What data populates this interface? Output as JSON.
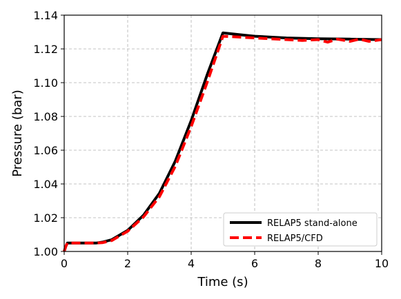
{
  "chart_data": {
    "type": "line",
    "title": "",
    "xlabel": "Time (s)",
    "ylabel": "Pressure (bar)",
    "xlim": [
      0,
      10
    ],
    "ylim": [
      1.0,
      1.14
    ],
    "xticks": [
      "0",
      "2",
      "4",
      "6",
      "8",
      "10"
    ],
    "xtick_values": [
      0,
      2,
      4,
      6,
      8,
      10
    ],
    "yticks": [
      "1.00",
      "1.02",
      "1.04",
      "1.06",
      "1.08",
      "1.10",
      "1.12",
      "1.14"
    ],
    "ytick_values": [
      1.0,
      1.02,
      1.04,
      1.06,
      1.08,
      1.1,
      1.12,
      1.14
    ],
    "grid": true,
    "legend_position": "lower-right",
    "series": [
      {
        "name": "RELAP5 stand-alone",
        "color": "#000000",
        "style": "solid",
        "x": [
          0.0,
          0.05,
          0.1,
          0.2,
          0.5,
          1.0,
          1.2,
          1.5,
          2.0,
          2.5,
          3.0,
          3.5,
          4.0,
          4.5,
          5.0,
          5.5,
          6.0,
          7.0,
          8.0,
          9.0,
          10.0
        ],
        "y": [
          1.0,
          1.003,
          1.005,
          1.005,
          1.005,
          1.005,
          1.0055,
          1.007,
          1.0125,
          1.0215,
          1.0345,
          1.0535,
          1.0775,
          1.1045,
          1.1295,
          1.1285,
          1.1275,
          1.1265,
          1.126,
          1.1258,
          1.1255
        ]
      },
      {
        "name": "RELAP5/CFD",
        "color": "#ff0000",
        "style": "dashed",
        "x": [
          0.0,
          0.05,
          0.1,
          0.2,
          0.5,
          1.0,
          1.2,
          1.5,
          2.0,
          2.5,
          3.0,
          3.5,
          4.0,
          4.5,
          5.0,
          5.5,
          6.0,
          7.0,
          7.5,
          8.0,
          8.3,
          8.6,
          9.0,
          9.3,
          9.6,
          10.0
        ],
        "y": [
          1.0,
          1.003,
          1.005,
          1.005,
          1.005,
          1.005,
          1.0052,
          1.0065,
          1.012,
          1.0205,
          1.0325,
          1.0505,
          1.074,
          1.1,
          1.1275,
          1.127,
          1.1265,
          1.1255,
          1.125,
          1.1255,
          1.124,
          1.1258,
          1.1245,
          1.1258,
          1.1245,
          1.1255
        ]
      }
    ]
  }
}
